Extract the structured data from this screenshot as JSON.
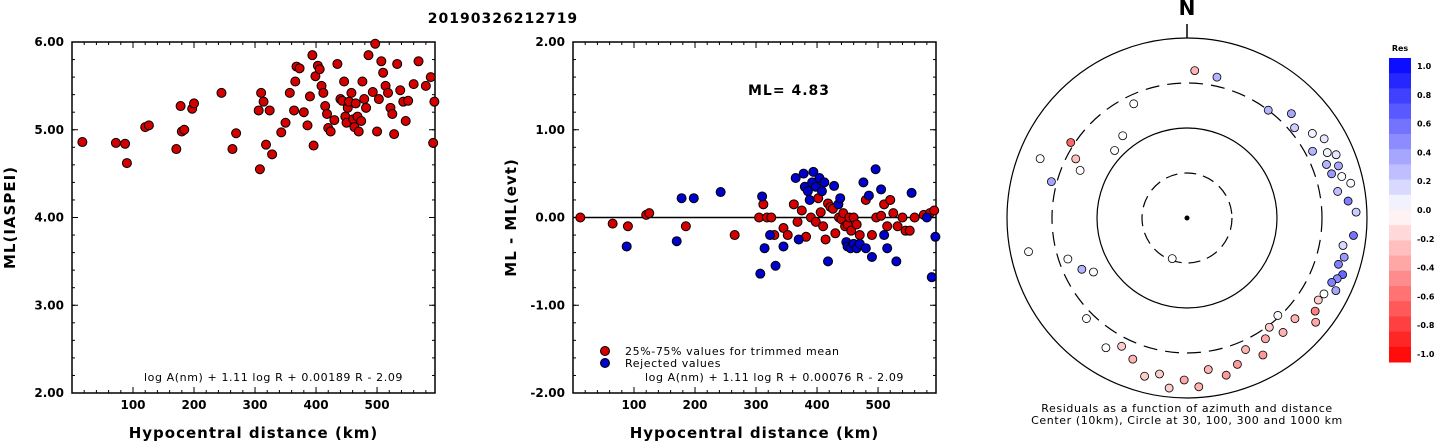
{
  "title": "20190326212719",
  "colors": {
    "red": "#d40000",
    "blue": "#0000cc"
  },
  "chart_data": [
    {
      "type": "scatter",
      "ylabel": "ML(IASPEI)",
      "xlabel": "Hypocentral distance (km)",
      "formula": "log A(nm) + 1.11 log R + 0.00189 R - 2.09",
      "xlim": [
        0,
        595
      ],
      "ylim": [
        2.0,
        6.0
      ],
      "xticks": [
        100,
        200,
        300,
        400,
        500
      ],
      "yticks": [
        "2.00",
        "3.00",
        "4.00",
        "5.00",
        "6.00"
      ],
      "points": [
        [
          17,
          4.86
        ],
        [
          72,
          4.85
        ],
        [
          87,
          4.84
        ],
        [
          90,
          4.62
        ],
        [
          120,
          5.03
        ],
        [
          126,
          5.05
        ],
        [
          171,
          4.78
        ],
        [
          178,
          5.27
        ],
        [
          180,
          4.98
        ],
        [
          184,
          5.0
        ],
        [
          197,
          5.24
        ],
        [
          200,
          5.3
        ],
        [
          245,
          5.42
        ],
        [
          263,
          4.78
        ],
        [
          269,
          4.96
        ],
        [
          306,
          5.22
        ],
        [
          308,
          4.55
        ],
        [
          310,
          5.42
        ],
        [
          314,
          5.32
        ],
        [
          318,
          4.83
        ],
        [
          324,
          5.22
        ],
        [
          328,
          4.72
        ],
        [
          343,
          4.97
        ],
        [
          350,
          5.08
        ],
        [
          357,
          5.42
        ],
        [
          364,
          5.22
        ],
        [
          366,
          5.55
        ],
        [
          368,
          5.72
        ],
        [
          373,
          5.7
        ],
        [
          380,
          5.2
        ],
        [
          386,
          5.05
        ],
        [
          390,
          5.38
        ],
        [
          394,
          5.85
        ],
        [
          396,
          4.82
        ],
        [
          399,
          5.61
        ],
        [
          403,
          5.73
        ],
        [
          406,
          5.69
        ],
        [
          409,
          5.5
        ],
        [
          412,
          5.42
        ],
        [
          415,
          5.27
        ],
        [
          418,
          5.18
        ],
        [
          420,
          5.02
        ],
        [
          424,
          4.98
        ],
        [
          430,
          5.11
        ],
        [
          435,
          5.75
        ],
        [
          440,
          5.35
        ],
        [
          443,
          5.33
        ],
        [
          446,
          5.55
        ],
        [
          448,
          5.15
        ],
        [
          450,
          5.08
        ],
        [
          452,
          5.25
        ],
        [
          454,
          5.32
        ],
        [
          458,
          5.42
        ],
        [
          461,
          5.12
        ],
        [
          463,
          5.03
        ],
        [
          465,
          5.3
        ],
        [
          468,
          5.15
        ],
        [
          470,
          4.98
        ],
        [
          474,
          5.1
        ],
        [
          476,
          5.55
        ],
        [
          479,
          5.35
        ],
        [
          482,
          5.25
        ],
        [
          486,
          5.85
        ],
        [
          493,
          5.43
        ],
        [
          497,
          5.98
        ],
        [
          500,
          4.98
        ],
        [
          503,
          5.35
        ],
        [
          507,
          5.78
        ],
        [
          510,
          5.65
        ],
        [
          514,
          5.5
        ],
        [
          518,
          5.42
        ],
        [
          522,
          5.25
        ],
        [
          525,
          5.18
        ],
        [
          528,
          4.95
        ],
        [
          533,
          5.75
        ],
        [
          538,
          5.45
        ],
        [
          543,
          5.32
        ],
        [
          547,
          5.1
        ],
        [
          551,
          5.33
        ],
        [
          560,
          5.52
        ],
        [
          568,
          5.78
        ],
        [
          580,
          5.5
        ],
        [
          588,
          5.6
        ],
        [
          592,
          4.85
        ],
        [
          594,
          5.32
        ]
      ]
    },
    {
      "type": "scatter",
      "ylabel": "ML - ML(evt)",
      "xlabel": "Hypocentral distance (km)",
      "formula": "log A(nm) + 1.11 log R + 0.00076 R - 2.09",
      "annotation": "ML= 4.83",
      "xlim": [
        0,
        595
      ],
      "ylim": [
        -2.0,
        2.0
      ],
      "xticks": [
        100,
        200,
        300,
        400,
        500
      ],
      "yticks": [
        "-2.00",
        "-1.00",
        "0.00",
        "1.00",
        "2.00"
      ],
      "legend": [
        "25%-75% values for trimmed mean",
        "Rejected values"
      ],
      "series": [
        {
          "name": "25%-75% values for trimmed mean",
          "color": "red",
          "points": [
            [
              12,
              0.0
            ],
            [
              65,
              -0.07
            ],
            [
              90,
              -0.1
            ],
            [
              120,
              0.03
            ],
            [
              125,
              0.05
            ],
            [
              185,
              -0.1
            ],
            [
              265,
              -0.2
            ],
            [
              305,
              0.0
            ],
            [
              312,
              0.15
            ],
            [
              318,
              0.0
            ],
            [
              325,
              0.0
            ],
            [
              330,
              -0.2
            ],
            [
              345,
              -0.12
            ],
            [
              352,
              -0.2
            ],
            [
              362,
              0.15
            ],
            [
              368,
              -0.05
            ],
            [
              375,
              0.08
            ],
            [
              382,
              -0.22
            ],
            [
              390,
              0.0
            ],
            [
              398,
              -0.05
            ],
            [
              402,
              0.22
            ],
            [
              406,
              0.06
            ],
            [
              410,
              -0.1
            ],
            [
              414,
              -0.25
            ],
            [
              418,
              0.16
            ],
            [
              422,
              0.12
            ],
            [
              426,
              0.1
            ],
            [
              430,
              -0.18
            ],
            [
              436,
              0.0
            ],
            [
              440,
              -0.02
            ],
            [
              443,
              0.05
            ],
            [
              446,
              -0.1
            ],
            [
              450,
              -0.08
            ],
            [
              453,
              0.0
            ],
            [
              456,
              -0.15
            ],
            [
              460,
              0.0
            ],
            [
              465,
              -0.08
            ],
            [
              470,
              -0.2
            ],
            [
              480,
              0.2
            ],
            [
              490,
              -0.2
            ],
            [
              497,
              0.0
            ],
            [
              505,
              0.02
            ],
            [
              510,
              0.15
            ],
            [
              515,
              -0.1
            ],
            [
              520,
              0.2
            ],
            [
              525,
              0.05
            ],
            [
              532,
              -0.1
            ],
            [
              540,
              0.0
            ],
            [
              545,
              -0.15
            ],
            [
              552,
              -0.15
            ],
            [
              560,
              0.0
            ],
            [
              575,
              0.03
            ],
            [
              585,
              0.05
            ],
            [
              592,
              0.08
            ]
          ]
        },
        {
          "name": "Rejected values",
          "color": "blue",
          "points": [
            [
              88,
              -0.33
            ],
            [
              170,
              -0.27
            ],
            [
              178,
              0.22
            ],
            [
              198,
              0.22
            ],
            [
              242,
              0.29
            ],
            [
              307,
              -0.64
            ],
            [
              310,
              0.24
            ],
            [
              314,
              -0.35
            ],
            [
              323,
              -0.2
            ],
            [
              332,
              -0.55
            ],
            [
              345,
              -0.33
            ],
            [
              365,
              0.45
            ],
            [
              370,
              -0.25
            ],
            [
              378,
              0.5
            ],
            [
              380,
              0.35
            ],
            [
              385,
              0.3
            ],
            [
              388,
              0.2
            ],
            [
              392,
              0.4
            ],
            [
              394,
              0.52
            ],
            [
              398,
              0.35
            ],
            [
              404,
              0.45
            ],
            [
              408,
              0.3
            ],
            [
              412,
              0.4
            ],
            [
              418,
              -0.5
            ],
            [
              428,
              0.36
            ],
            [
              435,
              0.15
            ],
            [
              438,
              0.22
            ],
            [
              448,
              -0.28
            ],
            [
              450,
              -0.33
            ],
            [
              455,
              -0.35
            ],
            [
              460,
              -0.3
            ],
            [
              465,
              -0.35
            ],
            [
              470,
              -0.3
            ],
            [
              476,
              0.4
            ],
            [
              480,
              -0.35
            ],
            [
              485,
              0.25
            ],
            [
              490,
              -0.45
            ],
            [
              496,
              0.55
            ],
            [
              505,
              0.32
            ],
            [
              510,
              -0.2
            ],
            [
              515,
              -0.35
            ],
            [
              530,
              -0.5
            ],
            [
              555,
              0.28
            ],
            [
              580,
              0.0
            ],
            [
              588,
              -0.68
            ],
            [
              594,
              -0.22
            ]
          ]
        }
      ]
    },
    {
      "type": "polar-scatter",
      "north_label": "N",
      "caption_line1": "Residuals as a function of azimuth and distance",
      "caption_line2": "Center (10km), Circle at 30, 100, 300 and 1000 km",
      "colorbar": {
        "title": "Res",
        "ticks": [
          "1.0",
          "0.8",
          "0.6",
          "0.4",
          "0.2",
          "0.0",
          "-0.2",
          "-0.4",
          "-0.6",
          "-0.8",
          "-1.0"
        ]
      },
      "points": [
        [
          3,
          0.82,
          -0.3
        ],
        [
          12,
          0.8,
          0.3
        ],
        [
          37,
          0.75,
          0.3
        ],
        [
          45,
          0.82,
          0.35
        ],
        [
          50,
          0.78,
          0.2
        ],
        [
          56,
          0.84,
          0.05
        ],
        [
          60,
          0.88,
          0.1
        ],
        [
          62,
          0.79,
          0.3
        ],
        [
          65,
          0.86,
          0.05
        ],
        [
          67,
          0.9,
          0.1
        ],
        [
          69,
          0.83,
          0.3
        ],
        [
          71,
          0.89,
          0.35
        ],
        [
          73,
          0.84,
          0.4
        ],
        [
          75,
          0.89,
          0.02
        ],
        [
          78,
          0.93,
          0.03
        ],
        [
          80,
          0.85,
          0.25
        ],
        [
          84,
          0.9,
          0.5
        ],
        [
          88,
          0.94,
          0.2
        ],
        [
          96,
          0.93,
          0.55
        ],
        [
          100,
          0.88,
          0.15
        ],
        [
          104,
          0.9,
          0.4
        ],
        [
          107,
          0.88,
          0.5
        ],
        [
          110,
          0.92,
          0.6
        ],
        [
          112,
          0.9,
          0.45
        ],
        [
          114,
          0.88,
          0.5
        ],
        [
          116,
          0.92,
          0.35
        ],
        [
          119,
          0.87,
          0.0
        ],
        [
          122,
          0.86,
          -0.2
        ],
        [
          126,
          0.88,
          -0.5
        ],
        [
          129,
          0.92,
          -0.35
        ],
        [
          133,
          0.82,
          -0.3
        ],
        [
          137,
          0.74,
          0.03
        ],
        [
          140,
          0.83,
          -0.3
        ],
        [
          143,
          0.76,
          -0.2
        ],
        [
          147,
          0.8,
          -0.35
        ],
        [
          151,
          0.87,
          -0.4
        ],
        [
          156,
          0.8,
          -0.3
        ],
        [
          161,
          0.86,
          -0.4
        ],
        [
          166,
          0.9,
          -0.4
        ],
        [
          172,
          0.85,
          -0.3
        ],
        [
          176,
          0.94,
          -0.3
        ],
        [
          181,
          0.9,
          -0.35
        ],
        [
          186,
          0.95,
          -0.2
        ],
        [
          190,
          0.88,
          -0.2
        ],
        [
          195,
          0.91,
          -0.2
        ],
        [
          201,
          0.84,
          -0.3
        ],
        [
          207,
          0.8,
          -0.2
        ],
        [
          212,
          0.85,
          0.0
        ],
        [
          225,
          0.79,
          0.0
        ],
        [
          240,
          0.6,
          0.02
        ],
        [
          244,
          0.65,
          0.3
        ],
        [
          251,
          0.7,
          0.0
        ],
        [
          258,
          0.9,
          0.02
        ],
        [
          285,
          0.78,
          0.35
        ],
        [
          292,
          0.88,
          0.02
        ],
        [
          294,
          0.65,
          0.0
        ],
        [
          298,
          0.7,
          -0.25
        ],
        [
          303,
          0.77,
          -0.6
        ],
        [
          313,
          0.55,
          0.0
        ],
        [
          322,
          0.58,
          0.0
        ],
        [
          335,
          0.7,
          0.0
        ],
        [
          200,
          0.24,
          0.0
        ]
      ]
    }
  ]
}
